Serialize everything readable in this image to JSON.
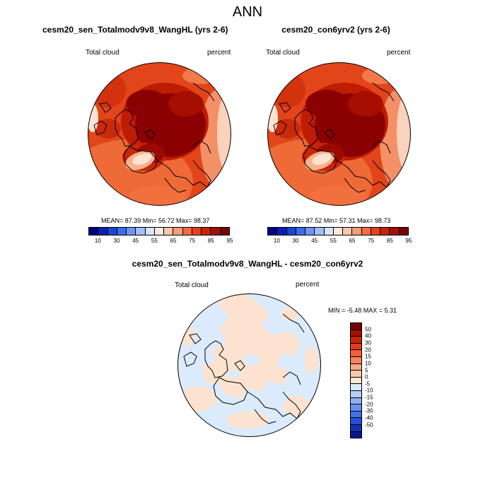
{
  "main_title": "ANN",
  "panels": [
    {
      "title": "cesm20_sen_Totalmodv9v8_WangHL (yrs 2-6)",
      "variable": "Total cloud",
      "units": "percent",
      "stats": "MEAN=  87.39  Min=  56.72  Max=  98.37"
    },
    {
      "title": "cesm20_con6yrv2 (yrs 2-6)",
      "variable": "Total cloud",
      "units": "percent",
      "stats": "MEAN=  87.52  Min=  57.31  Max=  98.73"
    }
  ],
  "diff_panel": {
    "title": "cesm20_sen_Totalmodv9v8_WangHL - cesm20_con6yrv2",
    "variable": "Total cloud",
    "units": "percent",
    "minmax": "MIN =  -5.48 MAX =   5.31"
  },
  "colorbar_top": {
    "colors": [
      "#000080",
      "#0a1fb4",
      "#1a46d6",
      "#3a6cf0",
      "#6f95f7",
      "#a3bdfa",
      "#d6e4fc",
      "#fde8dc",
      "#fac7ad",
      "#f99c7a",
      "#f56b45",
      "#e8401c",
      "#c82306",
      "#a30f00",
      "#7a0000"
    ],
    "labels": [
      "10",
      "30",
      "45",
      "55",
      "65",
      "75",
      "85",
      "95"
    ]
  },
  "colorbar_diff": {
    "colors": [
      "#7a0000",
      "#a31100",
      "#c8240a",
      "#e63b1b",
      "#f55d37",
      "#f9855f",
      "#f8a985",
      "#f9c8ab",
      "#fde6d4",
      "#dce9fb",
      "#b7cdf8",
      "#8eaff6",
      "#6a8ff2",
      "#4470ea",
      "#244fd8",
      "#1231b6",
      "#081a8f"
    ],
    "labels": [
      "50",
      "40",
      "30",
      "20",
      "15",
      "10",
      "5",
      "0",
      "-5",
      "-10",
      "-15",
      "-20",
      "-30",
      "-40",
      "-50"
    ]
  },
  "colors": {
    "land_outline": "#000000",
    "field_high": "#8b0000",
    "field_mid": "#d8350f",
    "field_low": "#f6b08e",
    "diff_pos": "#fde3cf",
    "diff_neg": "#dcebfb"
  }
}
